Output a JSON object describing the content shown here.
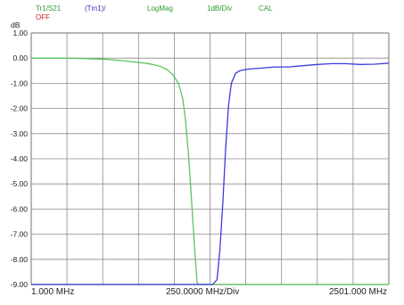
{
  "header": {
    "trace": "Tr1/S21",
    "marker": "(Tm1)/",
    "format": "LogMag",
    "scale": "1dB/Div",
    "cal": "CAL",
    "state": "OFF"
  },
  "colors": {
    "trace_green": "#5cc45c",
    "trace_blue": "#3a3ae0",
    "header_green": "#2e9a2e",
    "header_blue": "#3636b0",
    "header_red": "#d02020",
    "grid": "#8a8a8a"
  },
  "chart_data": {
    "type": "line",
    "ylabel": "dB",
    "ylim": [
      -9,
      1
    ],
    "xlim": [
      1,
      2501
    ],
    "y_ticks": [
      "1.00",
      "0.00",
      "-1.00",
      "-2.00",
      "-3.00",
      "-4.00",
      "-5.00",
      "-6.00",
      "-7.00",
      "-8.00",
      "-9.00"
    ],
    "x_labels": {
      "start": "1.000 MHz",
      "center": "250.0000 MHz/Div",
      "stop": "2501.000 MHz"
    },
    "grid": true,
    "series": [
      {
        "color": "#5cc45c",
        "x": [
          1,
          100,
          250,
          400,
          500,
          600,
          700,
          800,
          850,
          900,
          950,
          990,
          1030,
          1060,
          1080,
          1100,
          1120,
          1140,
          1160,
          1170,
          1200,
          1400,
          1600,
          1800,
          2000,
          2200,
          2501
        ],
        "y": [
          0,
          0,
          0,
          -0.02,
          -0.04,
          -0.08,
          -0.14,
          -0.2,
          -0.25,
          -0.32,
          -0.45,
          -0.65,
          -1.0,
          -1.6,
          -2.5,
          -3.8,
          -5.5,
          -7.3,
          -8.9,
          -9,
          -9,
          -9,
          -9,
          -9,
          -9,
          -9,
          -9
        ]
      },
      {
        "color": "#3a3ae0",
        "x": [
          1,
          500,
          1000,
          1200,
          1270,
          1300,
          1320,
          1340,
          1360,
          1380,
          1400,
          1430,
          1460,
          1500,
          1550,
          1600,
          1700,
          1800,
          1900,
          2000,
          2100,
          2200,
          2300,
          2400,
          2501
        ],
        "y": [
          -9,
          -9,
          -9,
          -9,
          -9,
          -8.8,
          -7.6,
          -5.8,
          -3.6,
          -1.9,
          -1.0,
          -0.6,
          -0.5,
          -0.45,
          -0.42,
          -0.4,
          -0.35,
          -0.35,
          -0.3,
          -0.25,
          -0.22,
          -0.22,
          -0.25,
          -0.24,
          -0.2
        ]
      }
    ]
  }
}
